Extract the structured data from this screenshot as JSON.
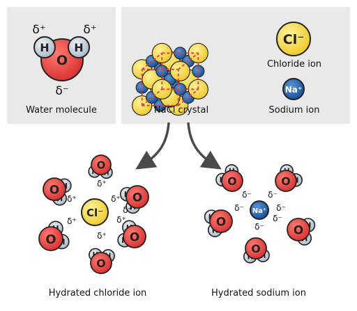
{
  "panels": {
    "water": {
      "caption": "Water molecule",
      "atom_h": "H",
      "atom_o": "O",
      "delta_plus": "δ⁺",
      "delta_minus": "δ⁻"
    },
    "crystal": {
      "caption": "NaCl crystal"
    },
    "legend": {
      "chloride_symbol": "Cl⁻",
      "chloride_label": "Chloride ion",
      "sodium_symbol": "Na⁺",
      "sodium_label": "Sodium ion"
    }
  },
  "hydrated": {
    "chloride_caption": "Hydrated chloride ion",
    "sodium_caption": "Hydrated sodium ion",
    "center_chloride": "Cl⁻",
    "center_sodium": "Na⁺",
    "partial_plus": "δ⁺",
    "partial_minus": "δ⁻"
  },
  "colors": {
    "panel_bg": "#e9e9ea",
    "oxygen": "#e63c3c",
    "hydrogen": "#b9c9d6",
    "chloride": "#f5d63a",
    "sodium": "#1f5fae",
    "lattice_line": "#e23b3b",
    "arrow": "#4a4a4a"
  }
}
